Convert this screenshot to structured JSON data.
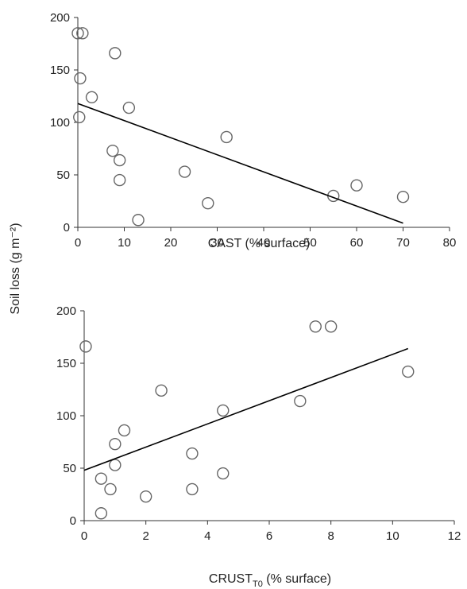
{
  "figure": {
    "shared_ylabel": "Soil loss (g m⁻²)"
  },
  "chart_data": [
    {
      "type": "scatter",
      "title": "",
      "xlabel": "CAST (% surface)",
      "ylabel": "Soil loss (g m⁻²)",
      "xlim": [
        0,
        80
      ],
      "ylim": [
        0,
        200
      ],
      "xticks": [
        0,
        10,
        20,
        30,
        40,
        50,
        60,
        70,
        80
      ],
      "yticks": [
        0,
        50,
        100,
        150,
        200
      ],
      "grid": false,
      "points": [
        {
          "x": 0,
          "y": 185
        },
        {
          "x": 1,
          "y": 185
        },
        {
          "x": 8,
          "y": 166
        },
        {
          "x": 0.5,
          "y": 142
        },
        {
          "x": 3,
          "y": 124
        },
        {
          "x": 11,
          "y": 114
        },
        {
          "x": 0.3,
          "y": 105
        },
        {
          "x": 32,
          "y": 86
        },
        {
          "x": 7.5,
          "y": 73
        },
        {
          "x": 9,
          "y": 64
        },
        {
          "x": 23,
          "y": 53
        },
        {
          "x": 9,
          "y": 45
        },
        {
          "x": 60,
          "y": 40
        },
        {
          "x": 55,
          "y": 30
        },
        {
          "x": 70,
          "y": 29
        },
        {
          "x": 28,
          "y": 23
        },
        {
          "x": 13,
          "y": 7
        }
      ],
      "trendline": {
        "x1": 0,
        "y1": 118,
        "x2": 70,
        "y2": 4
      }
    },
    {
      "type": "scatter",
      "title": "",
      "xlabel_main": "CRUST",
      "xlabel_sub": "T0",
      "xlabel_rest": " (% surface)",
      "ylabel": "Soil loss (g m⁻²)",
      "xlim": [
        0,
        12
      ],
      "ylim": [
        0,
        200
      ],
      "xticks": [
        0,
        2,
        4,
        6,
        8,
        10,
        12
      ],
      "yticks": [
        0,
        50,
        100,
        150,
        200
      ],
      "grid": false,
      "points": [
        {
          "x": 0.05,
          "y": 166
        },
        {
          "x": 7.5,
          "y": 185
        },
        {
          "x": 8,
          "y": 185
        },
        {
          "x": 10.5,
          "y": 142
        },
        {
          "x": 2.5,
          "y": 124
        },
        {
          "x": 7,
          "y": 114
        },
        {
          "x": 4.5,
          "y": 105
        },
        {
          "x": 1.3,
          "y": 86
        },
        {
          "x": 1,
          "y": 73
        },
        {
          "x": 3.5,
          "y": 64
        },
        {
          "x": 1,
          "y": 53
        },
        {
          "x": 4.5,
          "y": 45
        },
        {
          "x": 0.55,
          "y": 40
        },
        {
          "x": 0.85,
          "y": 30
        },
        {
          "x": 3.5,
          "y": 30
        },
        {
          "x": 2,
          "y": 23
        },
        {
          "x": 0.55,
          "y": 7
        }
      ],
      "trendline": {
        "x1": 0,
        "y1": 48,
        "x2": 10.5,
        "y2": 164
      }
    }
  ]
}
